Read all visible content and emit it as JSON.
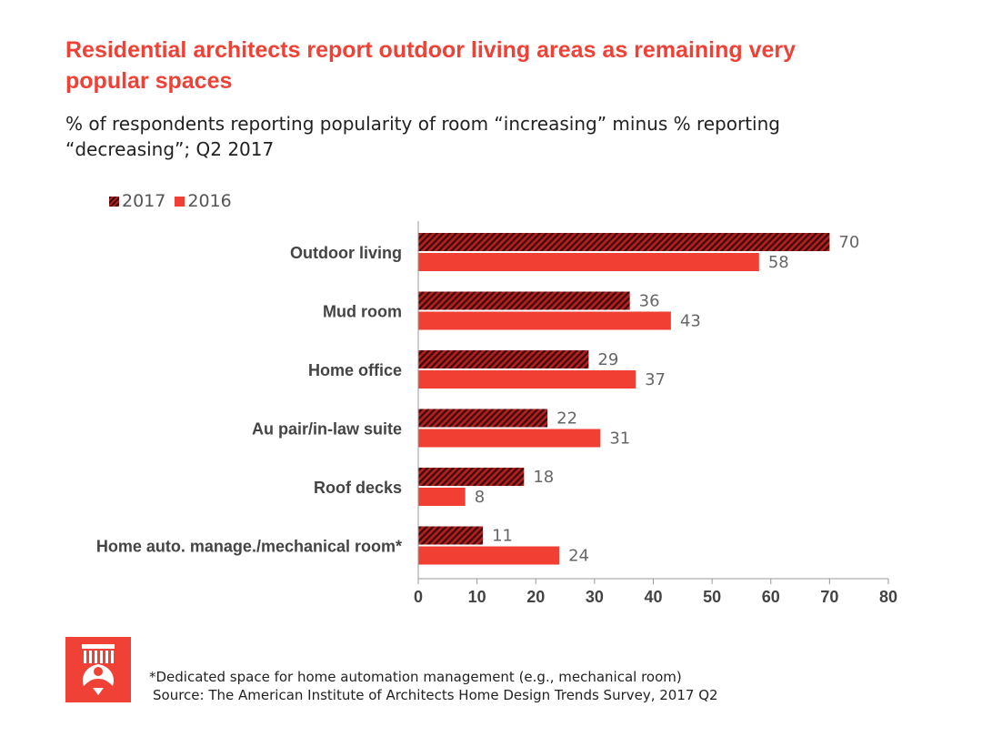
{
  "title": "Residential architects report outdoor living areas as remaining very popular spaces",
  "subtitle": "% of respondents reporting popularity of room “increasing” minus % reporting “decreasing”; Q2 2017",
  "footnote": "*Dedicated space for home automation management (e.g., mechanical room)",
  "source": "Source: The American Institute of Architects Home Design Trends Survey, 2017 Q2",
  "colors": {
    "series_2017": "#b11f1f",
    "series_2017_stripe": "#3a0a0a",
    "series_2016": "#f23f33",
    "title": "#ef4136",
    "axis": "#9a9a9a"
  },
  "chart_data": {
    "type": "bar",
    "orientation": "horizontal",
    "categories": [
      "Outdoor living",
      "Mud room",
      "Home office",
      "Au pair/in-law suite",
      "Roof decks",
      "Home auto. manage./mechanical room*"
    ],
    "series": [
      {
        "name": "2017",
        "values": [
          70,
          36,
          29,
          22,
          18,
          11
        ],
        "pattern": "hatched"
      },
      {
        "name": "2016",
        "values": [
          58,
          43,
          37,
          31,
          8,
          24
        ],
        "pattern": "solid"
      }
    ],
    "xticks": [
      "0",
      "10",
      "20",
      "30",
      "40",
      "50",
      "60",
      "70",
      "80"
    ],
    "xlim": [
      0,
      80
    ],
    "legend_position": "top-left",
    "grid": false
  }
}
